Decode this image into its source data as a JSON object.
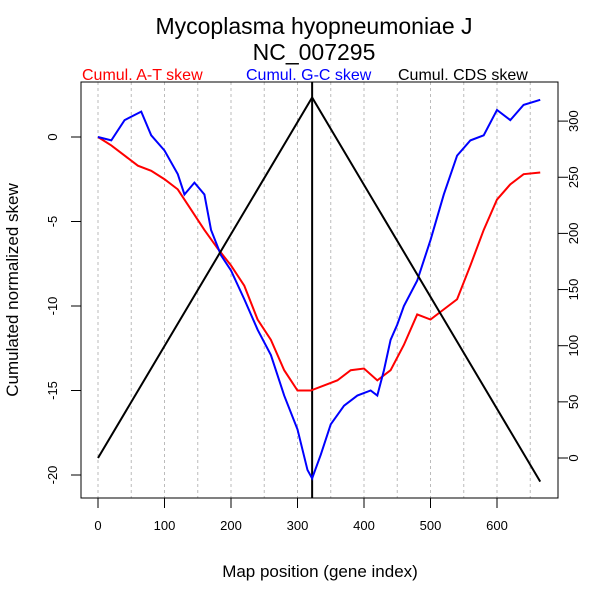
{
  "chart_data": {
    "type": "line",
    "title": "Mycoplasma hyopneumoniae J",
    "subtitle": "NC_007295",
    "xlabel": "Map position (gene index)",
    "ylabel": "Cumulated normalized skew",
    "xlim": [
      -25,
      690
    ],
    "ylim": [
      -21.5,
      3
    ],
    "y2lim": [
      -35,
      335
    ],
    "xticks": [
      0,
      100,
      200,
      300,
      400,
      500,
      600
    ],
    "yticks": [
      0,
      -5,
      -10,
      -15,
      -20
    ],
    "y2ticks": [
      0,
      50,
      100,
      150,
      200,
      250,
      300
    ],
    "grid_x": [
      0,
      50,
      100,
      150,
      200,
      250,
      300,
      350,
      400,
      450,
      500,
      550,
      600,
      650
    ],
    "origin_line": 322,
    "legend": [
      {
        "label": "Cumul. A-T skew",
        "color": "#ff0000"
      },
      {
        "label": "Cumul. G-C skew",
        "color": "#0000ff"
      },
      {
        "label": "Cumul. CDS skew",
        "color": "#000000"
      }
    ],
    "series": [
      {
        "name": "Cumul. A-T skew",
        "color": "#ff0000",
        "axis": "left",
        "x": [
          0,
          20,
          40,
          60,
          80,
          100,
          120,
          140,
          160,
          180,
          200,
          220,
          240,
          260,
          280,
          300,
          320,
          340,
          360,
          380,
          400,
          420,
          440,
          460,
          480,
          500,
          520,
          540,
          560,
          580,
          600,
          620,
          640,
          665
        ],
        "y": [
          0,
          -0.5,
          -1.1,
          -1.7,
          -2,
          -2.5,
          -3.1,
          -4.3,
          -5.5,
          -6.6,
          -7.6,
          -8.8,
          -10.8,
          -12,
          -13.8,
          -15,
          -15,
          -14.7,
          -14.4,
          -13.8,
          -13.7,
          -14.4,
          -13.8,
          -12.3,
          -10.5,
          -10.8,
          -10.2,
          -9.6,
          -7.6,
          -5.5,
          -3.7,
          -2.8,
          -2.2,
          -2.1
        ]
      },
      {
        "name": "Cumul. G-C skew",
        "color": "#0000ff",
        "axis": "left",
        "x": [
          0,
          20,
          40,
          55,
          65,
          80,
          100,
          120,
          130,
          145,
          160,
          170,
          185,
          200,
          220,
          240,
          260,
          280,
          300,
          315,
          322,
          335,
          350,
          370,
          390,
          410,
          420,
          430,
          440,
          450,
          460,
          480,
          500,
          520,
          540,
          560,
          580,
          600,
          620,
          640,
          665
        ],
        "y": [
          0,
          -0.2,
          1,
          1.3,
          1.5,
          0.1,
          -0.8,
          -2.2,
          -3.4,
          -2.7,
          -3.4,
          -5.5,
          -7,
          -7.9,
          -9.6,
          -11.4,
          -12.9,
          -15.3,
          -17.3,
          -19.7,
          -20.2,
          -18.8,
          -17,
          -15.9,
          -15.3,
          -15,
          -15.3,
          -13.8,
          -12,
          -11.1,
          -10,
          -8.5,
          -6.1,
          -3.4,
          -1.1,
          -0.2,
          0.1,
          1.6,
          1,
          1.9,
          2.2
        ]
      },
      {
        "name": "Cumul. CDS skew",
        "color": "#000000",
        "axis": "right",
        "x": [
          0,
          322,
          665
        ],
        "y": [
          0,
          321,
          -21
        ]
      }
    ]
  }
}
